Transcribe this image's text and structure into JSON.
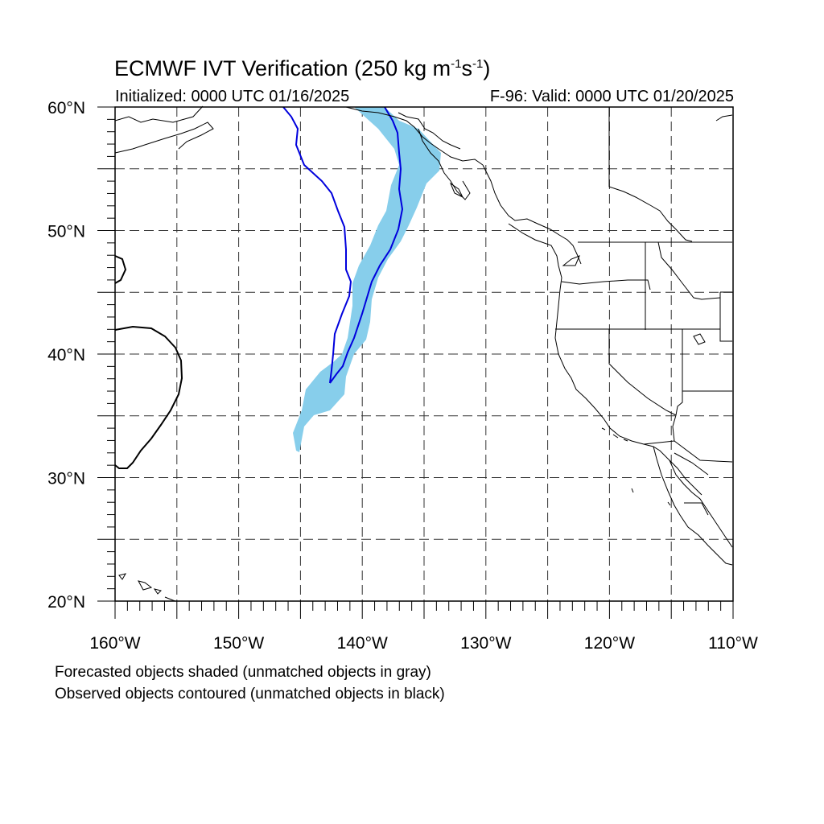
{
  "header": {
    "title": "ECMWF IVT Verification (250 kg m",
    "title_exp1": "-1",
    "title_mid": "s",
    "title_exp2": "-1",
    "title_end": ")",
    "initialized": "Initialized: 0000 UTC 01/16/2025",
    "valid": "F-96: Valid: 0000 UTC 01/20/2025"
  },
  "axes": {
    "lon_range": [
      -160,
      -110
    ],
    "lat_range": [
      20,
      60
    ],
    "lon_labels": [
      "160°W",
      "150°W",
      "140°W",
      "130°W",
      "120°W",
      "110°W"
    ],
    "lat_labels": [
      "20°N",
      "30°N",
      "40°N",
      "50°N",
      "60°N"
    ],
    "grid": "dashed every 5°"
  },
  "colors": {
    "forecast_fill": "#87CEEB",
    "observed_contour": "#0000DD",
    "coast": "#000000"
  },
  "notes": {
    "line1": "Forecasted objects shaded (unmatched objects in gray)",
    "line2": "Observed objects contoured (unmatched objects in black)"
  }
}
